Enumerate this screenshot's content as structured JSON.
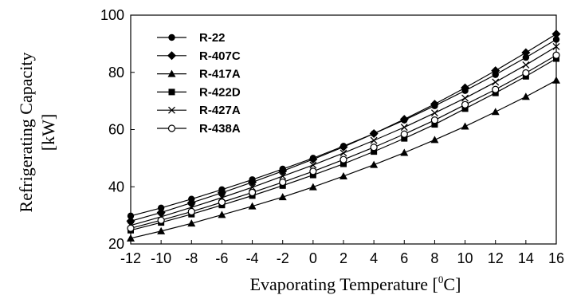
{
  "chart_data": {
    "type": "line",
    "xlabel_main": "Evaporating Temperature [",
    "xlabel_sup": "0",
    "xlabel_end": "C]",
    "ylabel_line1": "Refrigerating Capacity",
    "ylabel_line2": "[kW]",
    "xlim": [
      -12,
      16
    ],
    "ylim": [
      20,
      100
    ],
    "x": [
      -12,
      -10,
      -8,
      -6,
      -4,
      -2,
      0,
      2,
      4,
      6,
      8,
      10,
      12,
      14,
      16
    ],
    "x_ticks": [
      "-12",
      "-10",
      "-8",
      "-6",
      "-4",
      "-2",
      "0",
      "2",
      "4",
      "6",
      "8",
      "10",
      "12",
      "14",
      "16"
    ],
    "y_ticks": [
      "20",
      "40",
      "60",
      "80",
      "100"
    ],
    "grid": false,
    "legend_position": "top-left",
    "series": [
      {
        "name": "R-22",
        "marker": "circle-filled",
        "values": [
          29.8,
          32.6,
          35.7,
          39.0,
          42.5,
          46.2,
          50.0,
          54.2,
          58.6,
          63.3,
          68.3,
          73.6,
          79.2,
          85.2,
          91.5
        ]
      },
      {
        "name": "R-407C",
        "marker": "diamond-filled",
        "values": [
          28.0,
          31.0,
          34.4,
          37.9,
          41.6,
          45.5,
          49.6,
          53.9,
          58.6,
          63.6,
          68.9,
          74.6,
          80.6,
          86.9,
          93.4
        ]
      },
      {
        "name": "R-417A",
        "marker": "triangle-filled",
        "values": [
          22.0,
          24.5,
          27.2,
          30.2,
          33.2,
          36.4,
          39.9,
          43.7,
          47.7,
          51.9,
          56.4,
          61.1,
          66.2,
          71.5,
          77.2
        ]
      },
      {
        "name": "R-422D",
        "marker": "square-filled",
        "values": [
          24.8,
          27.5,
          30.4,
          33.6,
          36.9,
          40.4,
          44.1,
          48.0,
          52.3,
          56.9,
          61.8,
          67.3,
          72.8,
          78.6,
          84.8
        ]
      },
      {
        "name": "R-427A",
        "marker": "x",
        "values": [
          26.5,
          29.5,
          32.8,
          36.2,
          39.8,
          43.7,
          47.6,
          51.8,
          56.2,
          60.8,
          65.8,
          71.0,
          76.6,
          82.6,
          89.0
        ]
      },
      {
        "name": "R-438A",
        "marker": "circle-open",
        "values": [
          25.5,
          28.3,
          31.3,
          34.6,
          38.0,
          41.6,
          45.4,
          49.5,
          53.8,
          58.4,
          63.3,
          68.7,
          74.0,
          79.8,
          86.0
        ]
      }
    ]
  }
}
